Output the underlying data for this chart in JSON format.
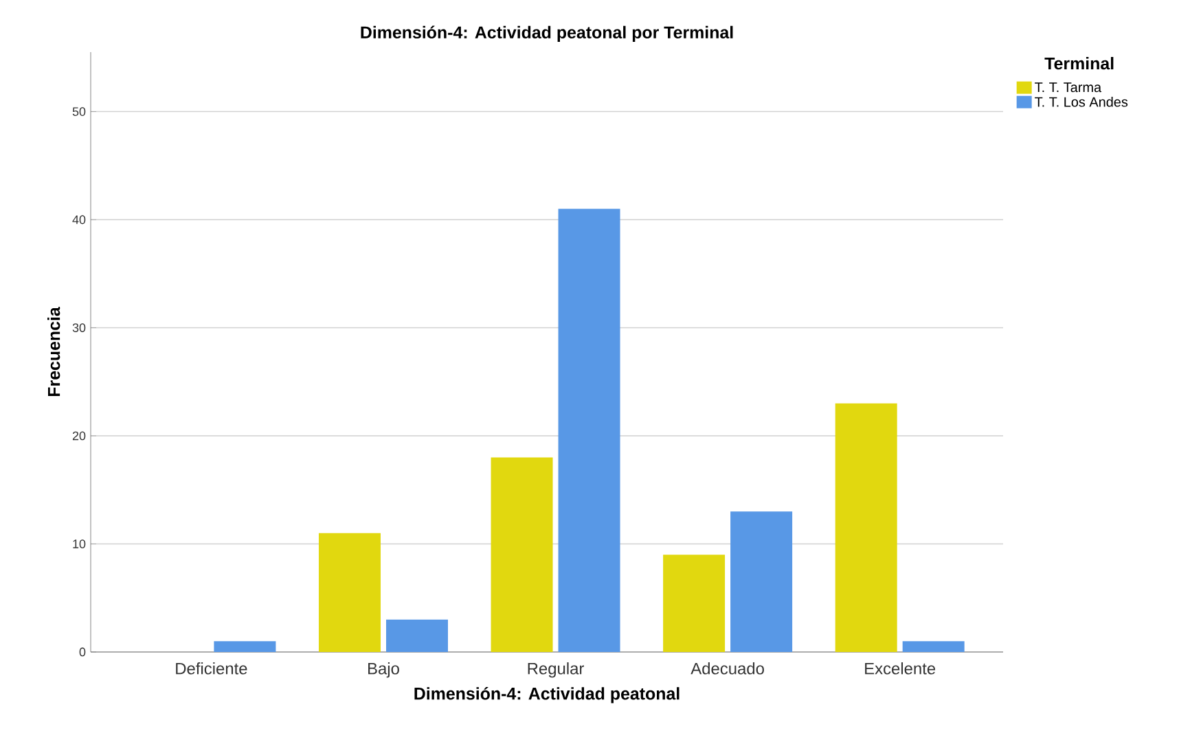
{
  "chart_data": {
    "type": "bar",
    "title": "Dimensión-4: Actividad peatonal por Terminal",
    "xlabel": "Dimensión-4: Actividad peatonal",
    "ylabel": "Frecuencia",
    "legend_title": "Terminal",
    "categories": [
      "Deficiente",
      "Bajo",
      "Regular",
      "Adecuado",
      "Excelente"
    ],
    "series": [
      {
        "name": "T. T. Tarma",
        "color": "#e1d80f",
        "values": [
          0,
          11,
          18,
          9,
          23
        ]
      },
      {
        "name": "T. T. Los Andes",
        "color": "#5898e6",
        "values": [
          1,
          3,
          41,
          13,
          1
        ]
      }
    ],
    "ylim": [
      0,
      55.5
    ],
    "yticks": [
      0,
      10,
      20,
      30,
      40,
      50
    ],
    "grid": "y",
    "legend": "top right"
  }
}
